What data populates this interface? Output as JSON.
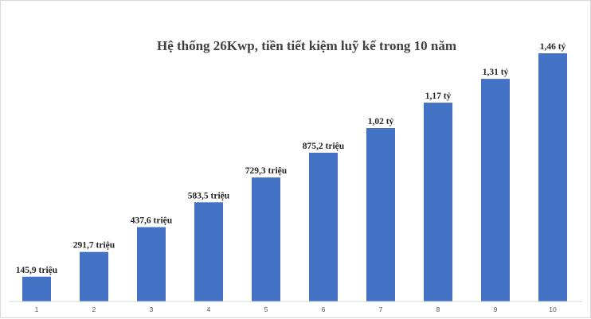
{
  "chart_data": {
    "type": "bar",
    "title": "Hệ thống 26Kwp, tiền tiết kiệm luỹ kế trong 10 năm",
    "xlabel": "",
    "ylabel": "",
    "categories": [
      "1",
      "2",
      "3",
      "4",
      "5",
      "6",
      "7",
      "8",
      "9",
      "10"
    ],
    "values": [
      145.9,
      291.7,
      437.6,
      583.5,
      729.3,
      875.2,
      1020,
      1170,
      1310,
      1460
    ],
    "data_labels": [
      "145,9 triệu",
      "291,7 triệu",
      "437,6 triệu",
      "583,5 triệu",
      "729,3 triệu",
      "875,2 triệu",
      "1,02 tỷ",
      "1,17 tỷ",
      "1,31 tỷ",
      "1,46 tỷ"
    ],
    "ylim": [
      0,
      1460
    ],
    "bar_color": "#4472c4",
    "grid": false,
    "legend": "none"
  }
}
